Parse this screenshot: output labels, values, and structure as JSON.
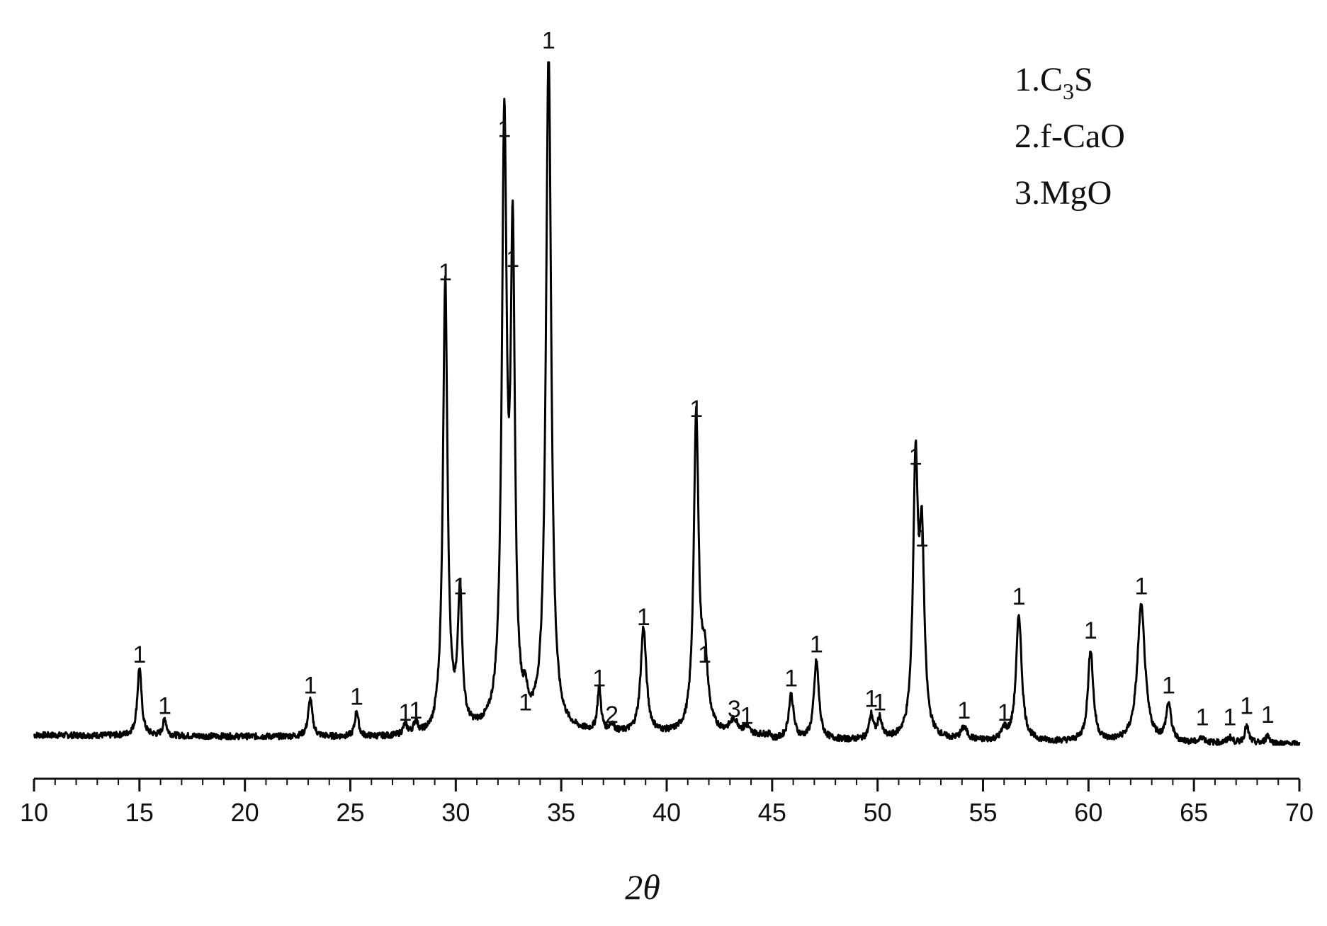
{
  "chart_data": {
    "type": "line",
    "title": "",
    "xlabel": "2θ",
    "ylabel": "",
    "xlim": [
      10,
      70
    ],
    "ylim": [
      0,
      100
    ],
    "x_ticks": [
      "10",
      "15",
      "20",
      "25",
      "30",
      "35",
      "40",
      "45",
      "50",
      "55",
      "60",
      "65",
      "70"
    ],
    "grid": false,
    "legend_position": "top-right",
    "legend": [
      {
        "prefix": "1.",
        "main": "C",
        "sub": "3",
        "suffix": "S"
      },
      {
        "prefix": "2.",
        "main": "f-CaO",
        "sub": "",
        "suffix": ""
      },
      {
        "prefix": "3.",
        "main": "MgO",
        "sub": "",
        "suffix": ""
      }
    ],
    "peaks": [
      {
        "x": 15.0,
        "y": 10.0,
        "w": 0.12,
        "label": "1"
      },
      {
        "x": 16.2,
        "y": 2.5,
        "w": 0.1,
        "label": "1"
      },
      {
        "x": 23.1,
        "y": 5.5,
        "w": 0.12,
        "label": "1"
      },
      {
        "x": 25.3,
        "y": 3.8,
        "w": 0.1,
        "label": "1"
      },
      {
        "x": 27.6,
        "y": 1.5,
        "w": 0.12,
        "label": "1"
      },
      {
        "x": 28.1,
        "y": 1.8,
        "w": 0.12,
        "label": "1"
      },
      {
        "x": 29.5,
        "y": 66.0,
        "w": 0.13,
        "label": "1"
      },
      {
        "x": 30.2,
        "y": 20.0,
        "w": 0.12,
        "label": "1"
      },
      {
        "x": 32.3,
        "y": 87.0,
        "w": 0.14,
        "label": "1"
      },
      {
        "x": 32.7,
        "y": 68.0,
        "w": 0.12,
        "label": "1"
      },
      {
        "x": 33.3,
        "y": 3.0,
        "w": 0.1,
        "label": "1"
      },
      {
        "x": 34.4,
        "y": 100.0,
        "w": 0.15,
        "label": "1"
      },
      {
        "x": 36.8,
        "y": 6.5,
        "w": 0.1,
        "label": "1"
      },
      {
        "x": 37.4,
        "y": 1.2,
        "w": 0.12,
        "label": "2"
      },
      {
        "x": 38.9,
        "y": 15.5,
        "w": 0.16,
        "label": "1"
      },
      {
        "x": 41.4,
        "y": 46.0,
        "w": 0.14,
        "label": "1"
      },
      {
        "x": 41.8,
        "y": 10.0,
        "w": 0.18,
        "label": "1"
      },
      {
        "x": 43.2,
        "y": 2.0,
        "w": 0.25,
        "label": "3"
      },
      {
        "x": 43.8,
        "y": 1.0,
        "w": 0.12,
        "label": "1"
      },
      {
        "x": 45.9,
        "y": 6.5,
        "w": 0.14,
        "label": "1"
      },
      {
        "x": 47.1,
        "y": 11.5,
        "w": 0.14,
        "label": "1"
      },
      {
        "x": 49.7,
        "y": 3.5,
        "w": 0.12,
        "label": "1"
      },
      {
        "x": 50.1,
        "y": 3.0,
        "w": 0.12,
        "label": "1"
      },
      {
        "x": 51.8,
        "y": 39.0,
        "w": 0.14,
        "label": "1"
      },
      {
        "x": 52.1,
        "y": 27.0,
        "w": 0.14,
        "label": "1"
      },
      {
        "x": 54.1,
        "y": 1.8,
        "w": 0.18,
        "label": "1"
      },
      {
        "x": 56.0,
        "y": 1.5,
        "w": 0.14,
        "label": "1"
      },
      {
        "x": 56.7,
        "y": 18.5,
        "w": 0.16,
        "label": "1"
      },
      {
        "x": 60.1,
        "y": 13.5,
        "w": 0.15,
        "label": "1"
      },
      {
        "x": 62.5,
        "y": 20.0,
        "w": 0.22,
        "label": "1"
      },
      {
        "x": 63.8,
        "y": 5.5,
        "w": 0.14,
        "label": "1"
      },
      {
        "x": 65.4,
        "y": 0.8,
        "w": 0.12,
        "label": "1"
      },
      {
        "x": 66.7,
        "y": 0.8,
        "w": 0.14,
        "label": "1"
      },
      {
        "x": 67.5,
        "y": 2.5,
        "w": 0.12,
        "label": "1"
      },
      {
        "x": 68.5,
        "y": 1.2,
        "w": 0.12,
        "label": "1"
      }
    ]
  }
}
